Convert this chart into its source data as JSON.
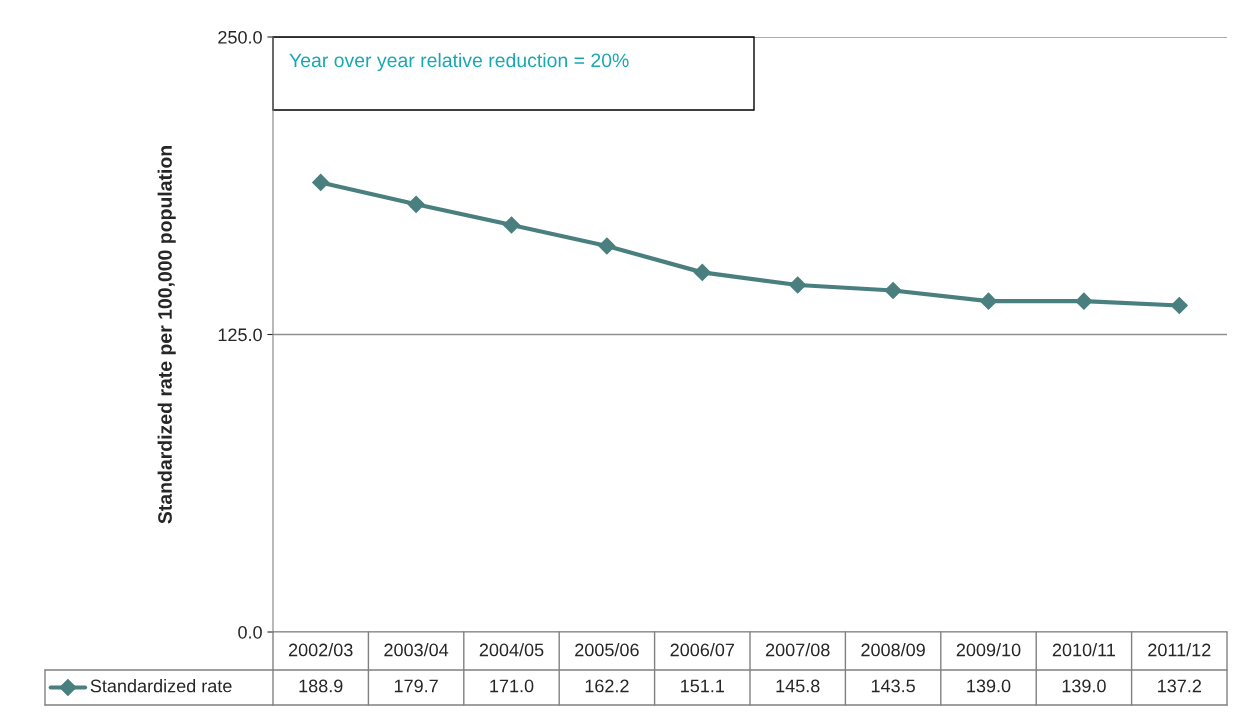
{
  "chart_data": {
    "type": "line",
    "ylabel": "Standardized rate per 100,000 population",
    "categories": [
      "2002/03",
      "2003/04",
      "2004/05",
      "2005/06",
      "2006/07",
      "2007/08",
      "2008/09",
      "2009/10",
      "2010/11",
      "2011/12"
    ],
    "series": [
      {
        "name": "Standardized rate",
        "color": "#4a7f7f",
        "values": [
          188.9,
          179.7,
          171.0,
          162.2,
          151.1,
          145.8,
          143.5,
          139.0,
          139.0,
          137.2
        ],
        "value_labels": [
          "188.9",
          "179.7",
          "171.0",
          "162.2",
          "151.1",
          "145.8",
          "143.5",
          "139.0",
          "139.0",
          "137.2"
        ]
      }
    ],
    "ylim": [
      0,
      250
    ],
    "yticks": [
      {
        "value": 0,
        "label": "0.0"
      },
      {
        "value": 125,
        "label": "125.0"
      },
      {
        "value": 250,
        "label": "250.0"
      }
    ],
    "grid": "y",
    "marker": "diamond",
    "line_style": "solid",
    "annotations": [
      "Year over year relative reduction = 20%"
    ]
  }
}
